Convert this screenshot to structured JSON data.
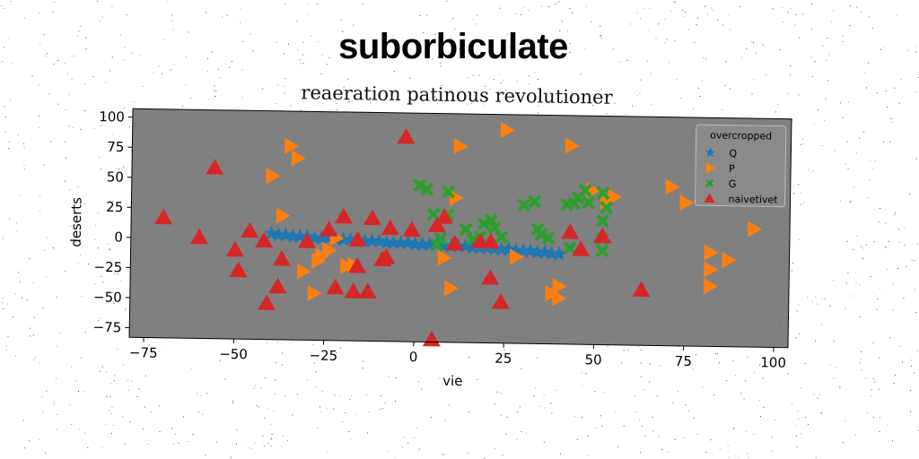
{
  "title": "suborbiculate",
  "subtitle": "reaeration patinous revolutioner",
  "chart_data": {
    "type": "scatter",
    "xlabel": "vie",
    "ylabel": "deserts",
    "xlim": [
      -79,
      104
    ],
    "ylim": [
      -83,
      107
    ],
    "xticks": [
      -75,
      -50,
      -25,
      0,
      25,
      50,
      75,
      100
    ],
    "yticks": [
      -75,
      -50,
      -25,
      0,
      25,
      50,
      75,
      100
    ],
    "xtick_labels": [
      "−75",
      "−50",
      "−25",
      "0",
      "25",
      "50",
      "75",
      "100"
    ],
    "ytick_labels": [
      "−75",
      "−50",
      "−25",
      "0",
      "25",
      "50",
      "75",
      "100"
    ],
    "grid": false,
    "background": "#808080",
    "legend": {
      "title": "overcropped",
      "placement": "top-right"
    },
    "series": [
      {
        "name": "Q",
        "marker": "star",
        "color": "#1f77b4",
        "points": [
          [
            -40,
            5
          ],
          [
            -38,
            4
          ],
          [
            -36,
            4
          ],
          [
            -34,
            3
          ],
          [
            -32,
            3
          ],
          [
            -30,
            3
          ],
          [
            -28,
            2
          ],
          [
            -26,
            2
          ],
          [
            -24,
            2
          ],
          [
            -22,
            1
          ],
          [
            -20,
            1
          ],
          [
            -18,
            1
          ],
          [
            -16,
            0
          ],
          [
            -14,
            0
          ],
          [
            -12,
            0
          ],
          [
            -10,
            0
          ],
          [
            -8,
            -1
          ],
          [
            -6,
            -1
          ],
          [
            -4,
            -1
          ],
          [
            -2,
            -1
          ],
          [
            0,
            -2
          ],
          [
            2,
            -2
          ],
          [
            4,
            -2
          ],
          [
            6,
            -2
          ],
          [
            8,
            -3
          ],
          [
            10,
            -3
          ],
          [
            12,
            -3
          ],
          [
            14,
            -3
          ],
          [
            16,
            -4
          ],
          [
            18,
            -4
          ],
          [
            20,
            -4
          ],
          [
            22,
            -5
          ],
          [
            24,
            -5
          ],
          [
            26,
            -5
          ],
          [
            28,
            -6
          ],
          [
            30,
            -6
          ],
          [
            32,
            -6
          ],
          [
            34,
            -7
          ],
          [
            36,
            -7
          ],
          [
            38,
            -8
          ],
          [
            40,
            -8
          ]
        ]
      },
      {
        "name": "P",
        "marker": "triangle-right",
        "color": "#ff7f0e",
        "points": [
          [
            -35,
            78
          ],
          [
            -33,
            68
          ],
          [
            -40,
            53
          ],
          [
            -37,
            20
          ],
          [
            -31,
            -26
          ],
          [
            -28,
            -44
          ],
          [
            -27,
            -17
          ],
          [
            -26,
            -13
          ],
          [
            -24,
            -8
          ],
          [
            -22,
            2
          ],
          [
            -19,
            -21
          ],
          [
            -17,
            -20
          ],
          [
            8,
            -13
          ],
          [
            10,
            -38
          ],
          [
            12,
            80
          ],
          [
            11,
            37
          ],
          [
            25,
            94
          ],
          [
            28,
            -11
          ],
          [
            38,
            -41
          ],
          [
            40,
            -45
          ],
          [
            43,
            82
          ],
          [
            53,
            36
          ],
          [
            71,
            49
          ],
          [
            75,
            36
          ],
          [
            82,
            -5
          ],
          [
            82,
            -19
          ],
          [
            82,
            -33
          ],
          [
            87,
            -11
          ],
          [
            94,
            15
          ],
          [
            49,
            45
          ],
          [
            55,
            40
          ],
          [
            40,
            -35
          ]
        ]
      },
      {
        "name": "G",
        "marker": "x",
        "color": "#2ca02c",
        "points": [
          [
            1,
            47
          ],
          [
            3,
            44
          ],
          [
            9,
            42
          ],
          [
            5,
            23
          ],
          [
            9,
            23
          ],
          [
            14,
            11
          ],
          [
            19,
            16
          ],
          [
            21,
            19
          ],
          [
            22,
            13
          ],
          [
            24,
            5
          ],
          [
            30,
            32
          ],
          [
            33,
            35
          ],
          [
            34,
            12
          ],
          [
            35,
            8
          ],
          [
            37,
            5
          ],
          [
            42,
            33
          ],
          [
            44,
            34
          ],
          [
            45,
            39
          ],
          [
            47,
            45
          ],
          [
            48,
            35
          ],
          [
            52,
            43
          ],
          [
            53,
            31
          ],
          [
            52,
            20
          ],
          [
            52,
            5
          ],
          [
            52,
            -5
          ],
          [
            43,
            -3
          ],
          [
            6,
            -2
          ],
          [
            7,
            3
          ],
          [
            16,
            3
          ],
          [
            18,
            5
          ]
        ]
      },
      {
        "name": "naivetivet",
        "marker": "triangle-up",
        "color": "#d62728",
        "points": [
          [
            -70,
            17
          ],
          [
            -60,
            1
          ],
          [
            -56,
            59
          ],
          [
            -50,
            -9
          ],
          [
            -49,
            -26
          ],
          [
            -46,
            7
          ],
          [
            -42,
            -1
          ],
          [
            -41,
            -53
          ],
          [
            -38,
            -39
          ],
          [
            -37,
            -16
          ],
          [
            -30,
            -1
          ],
          [
            -24,
            9
          ],
          [
            -22,
            -39
          ],
          [
            -20,
            20
          ],
          [
            -17,
            -42
          ],
          [
            -16,
            1
          ],
          [
            -16,
            -21
          ],
          [
            -13,
            -42
          ],
          [
            -12,
            19
          ],
          [
            -9,
            -15
          ],
          [
            -8,
            -13
          ],
          [
            -7,
            11
          ],
          [
            -3,
            87
          ],
          [
            -1,
            10
          ],
          [
            5,
            -81
          ],
          [
            6,
            14
          ],
          [
            8,
            21
          ],
          [
            11,
            -1
          ],
          [
            18,
            1
          ],
          [
            21,
            1
          ],
          [
            21,
            -29
          ],
          [
            24,
            -49
          ],
          [
            43,
            10
          ],
          [
            46,
            -4
          ],
          [
            52,
            7
          ],
          [
            63,
            -37
          ]
        ]
      }
    ]
  }
}
